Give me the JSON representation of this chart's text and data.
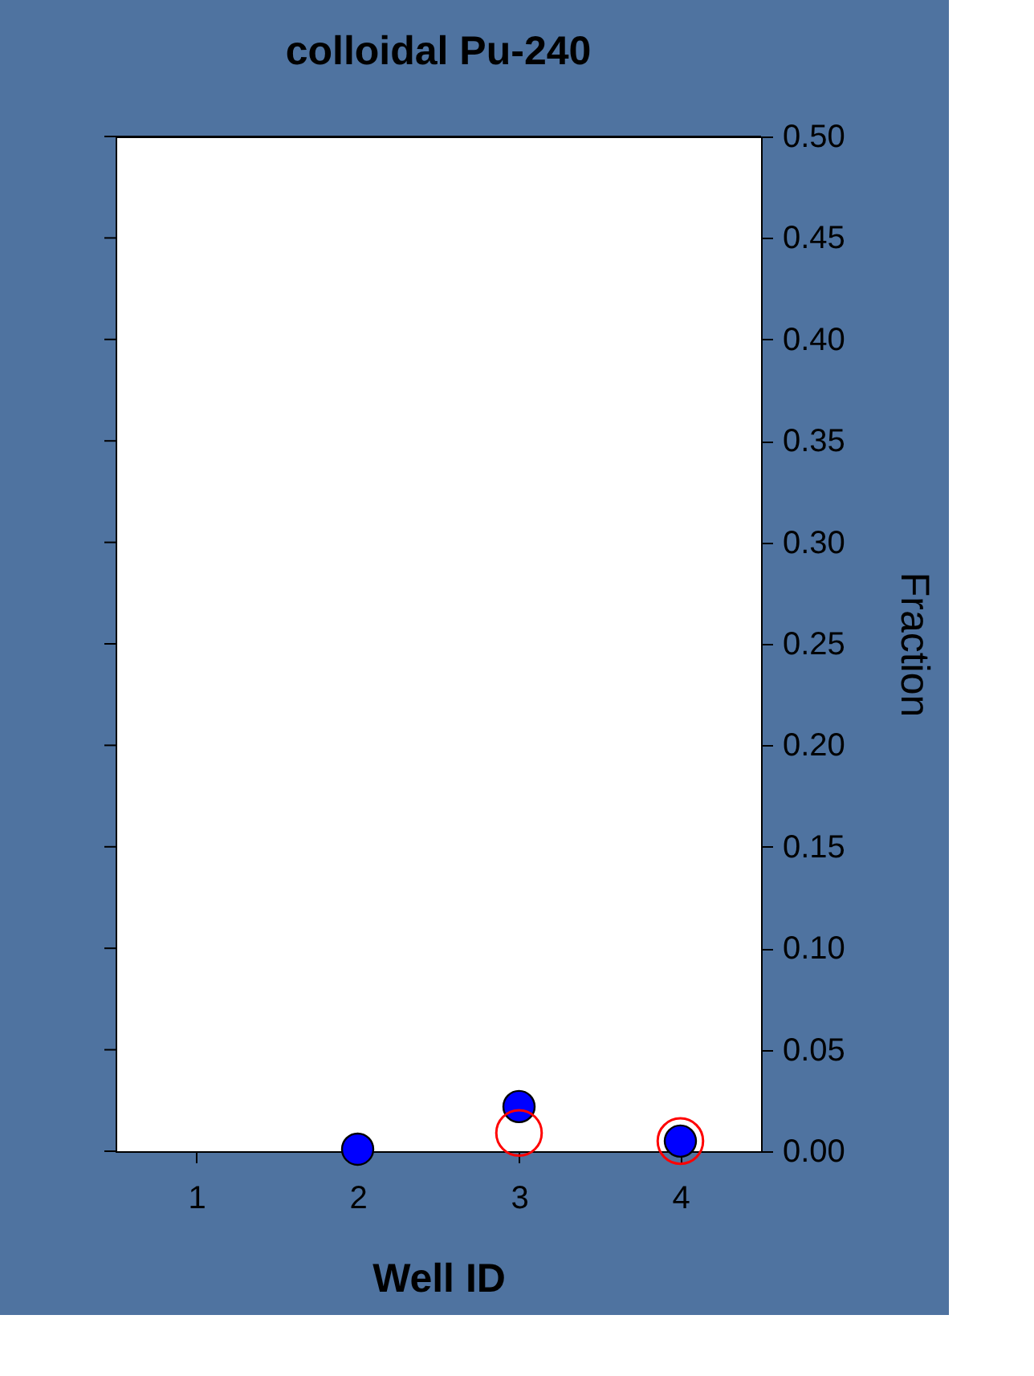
{
  "chart_data": {
    "type": "scatter",
    "title": "colloidal Pu-240",
    "xlabel": "Well ID",
    "ylabel": "Fraction",
    "x": [
      2,
      3,
      4
    ],
    "series": [
      {
        "color": "#0000ff",
        "values": [
          0.001,
          0.022,
          0.005
        ]
      },
      {
        "color": "#ff0000",
        "values": [
          null,
          0.009,
          0.005
        ]
      }
    ],
    "xlim": [
      0.5,
      4.5
    ],
    "xticks": [
      1,
      2,
      3,
      4
    ],
    "ylim": [
      0,
      0.5
    ],
    "yticks": [
      {
        "value": 0,
        "label": "0.00"
      },
      0.05,
      {
        "value": 0.1,
        "label": "0.10"
      },
      0.15,
      {
        "value": 0.2,
        "label": "0.20"
      },
      0.25,
      {
        "value": 0.3,
        "label": "0.30"
      },
      0.35,
      {
        "value": 0.4,
        "label": "0.40"
      },
      0.45,
      {
        "value": 0.5,
        "label": "0.50"
      }
    ],
    "marker": "circle",
    "grid": false,
    "legend": false
  }
}
